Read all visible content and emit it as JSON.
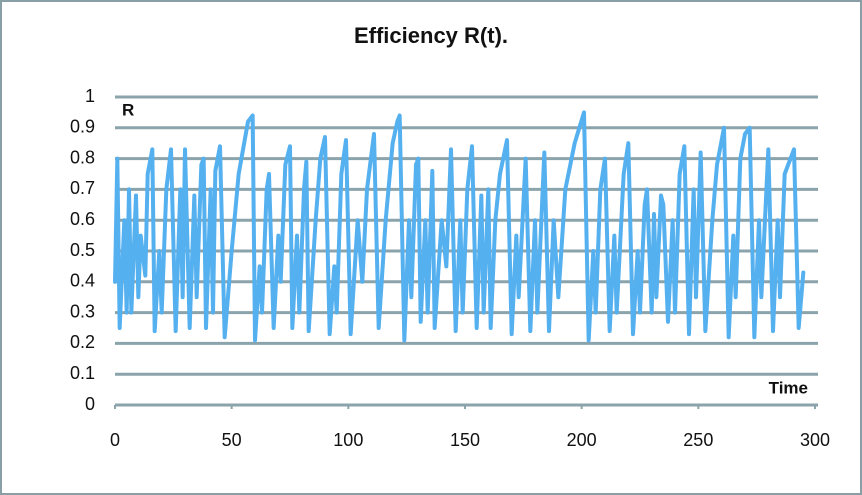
{
  "chart_data": {
    "type": "line",
    "title": "Efficiency R(t).",
    "ylabel": "R",
    "xlabel": "Time",
    "color": "#55b0ef",
    "grid": true,
    "xlim": [
      0,
      300
    ],
    "xticks": [
      0,
      50,
      100,
      150,
      200,
      250,
      300
    ],
    "ylim": [
      0,
      1
    ],
    "yticks": [
      0,
      0.1,
      0.2,
      0.3,
      0.4,
      0.5,
      0.6,
      0.7,
      0.8,
      0.9,
      1
    ],
    "x": [
      0,
      1,
      2,
      4,
      5,
      6,
      7,
      9,
      10,
      11,
      13,
      14,
      16,
      17,
      19,
      20,
      22,
      24,
      26,
      28,
      29,
      30,
      32,
      34,
      35,
      37,
      38,
      39,
      41,
      42,
      43,
      45,
      47,
      50,
      53,
      57,
      59,
      60,
      62,
      63,
      65,
      66,
      68,
      70,
      71,
      73,
      75,
      76,
      78,
      79,
      81,
      82,
      83,
      86,
      88,
      90,
      92,
      94,
      95,
      97,
      99,
      101,
      104,
      106,
      108,
      111,
      113,
      116,
      119,
      121,
      122,
      124,
      126,
      127,
      129,
      130,
      131,
      133,
      134,
      136,
      137,
      140,
      142,
      144,
      146,
      148,
      149,
      151,
      153,
      155,
      157,
      158,
      160,
      161,
      163,
      165,
      168,
      170,
      172,
      173,
      176,
      178,
      180,
      181,
      184,
      186,
      188,
      190,
      193,
      197,
      201,
      203,
      205,
      206,
      208,
      210,
      212,
      214,
      215,
      218,
      220,
      222,
      224,
      225,
      227,
      228,
      230,
      231,
      232,
      234,
      235,
      237,
      239,
      240,
      242,
      244,
      246,
      248,
      249,
      251,
      253,
      256,
      258,
      261,
      263,
      265,
      266,
      268,
      270,
      272,
      274,
      276,
      277,
      280,
      282,
      284,
      285,
      287,
      291,
      293,
      295
    ],
    "values": [
      0.4,
      0.8,
      0.25,
      0.6,
      0.3,
      0.7,
      0.3,
      0.68,
      0.35,
      0.55,
      0.42,
      0.75,
      0.83,
      0.24,
      0.5,
      0.3,
      0.7,
      0.83,
      0.24,
      0.7,
      0.35,
      0.83,
      0.25,
      0.68,
      0.35,
      0.78,
      0.8,
      0.25,
      0.7,
      0.3,
      0.76,
      0.84,
      0.22,
      0.5,
      0.75,
      0.92,
      0.94,
      0.21,
      0.45,
      0.3,
      0.7,
      0.75,
      0.25,
      0.55,
      0.4,
      0.78,
      0.84,
      0.25,
      0.55,
      0.3,
      0.7,
      0.79,
      0.24,
      0.6,
      0.8,
      0.87,
      0.23,
      0.45,
      0.3,
      0.75,
      0.86,
      0.23,
      0.6,
      0.4,
      0.7,
      0.88,
      0.25,
      0.6,
      0.85,
      0.92,
      0.94,
      0.21,
      0.6,
      0.35,
      0.78,
      0.8,
      0.27,
      0.6,
      0.3,
      0.76,
      0.25,
      0.6,
      0.45,
      0.83,
      0.24,
      0.6,
      0.3,
      0.7,
      0.84,
      0.25,
      0.68,
      0.3,
      0.7,
      0.25,
      0.6,
      0.75,
      0.86,
      0.23,
      0.55,
      0.35,
      0.8,
      0.24,
      0.6,
      0.3,
      0.82,
      0.24,
      0.6,
      0.35,
      0.7,
      0.85,
      0.95,
      0.21,
      0.5,
      0.3,
      0.7,
      0.8,
      0.24,
      0.55,
      0.3,
      0.75,
      0.85,
      0.23,
      0.5,
      0.3,
      0.65,
      0.7,
      0.3,
      0.62,
      0.35,
      0.68,
      0.65,
      0.27,
      0.6,
      0.3,
      0.75,
      0.84,
      0.23,
      0.7,
      0.35,
      0.82,
      0.24,
      0.6,
      0.78,
      0.9,
      0.22,
      0.55,
      0.35,
      0.8,
      0.88,
      0.9,
      0.22,
      0.6,
      0.35,
      0.83,
      0.24,
      0.6,
      0.35,
      0.75,
      0.83,
      0.25,
      0.43
    ]
  }
}
